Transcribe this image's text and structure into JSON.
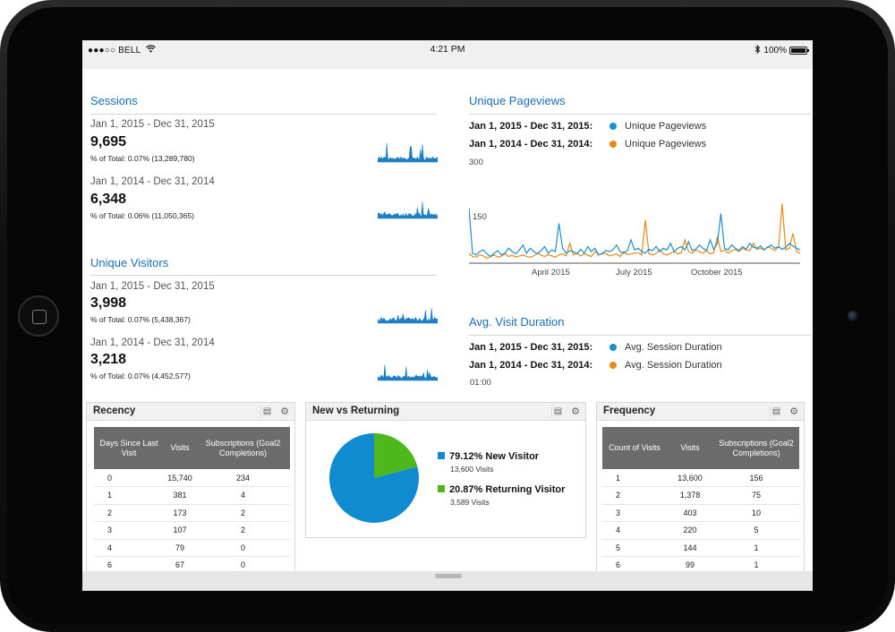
{
  "status_bar": {
    "carrier": "●●●○○ BELL",
    "time": "4:21 PM",
    "battery": "100%",
    "icons": [
      "signal-dots-icon",
      "wifi-icon",
      "bluetooth-icon",
      "battery-icon"
    ]
  },
  "sessions": {
    "title": "Sessions",
    "current": {
      "date": "Jan 1, 2015 - Dec 31, 2015",
      "value": "9,695",
      "total": "% of Total: 0.07% (13,289,780)"
    },
    "previous": {
      "date": "Jan 1, 2014 - Dec 31, 2014",
      "value": "6,348",
      "total": "% of Total: 0.06% (11,050,365)"
    }
  },
  "unique_visitors": {
    "title": "Unique Visitors",
    "current": {
      "date": "Jan 1, 2015 - Dec 31, 2015",
      "value": "3,998",
      "total": "% of Total: 0.07% (5,438,367)"
    },
    "previous": {
      "date": "Jan 1, 2014 - Dec 31, 2014",
      "value": "3,218",
      "total": "% of Total: 0.07% (4,452,577)"
    }
  },
  "unique_pageviews": {
    "title": "Unique Pageviews",
    "legend": [
      {
        "date": "Jan 1, 2015 - Dec 31, 2015:",
        "name": "Unique Pageviews",
        "color": "#1a8fd0"
      },
      {
        "date": "Jan 1, 2014 - Dec 31, 2014:",
        "name": "Unique Pageviews",
        "color": "#e58a16"
      }
    ]
  },
  "avg_visit_duration": {
    "title": "Avg. Visit Duration",
    "legend": [
      {
        "date": "Jan 1, 2015 - Dec 31, 2015:",
        "name": "Avg. Session Duration",
        "color": "#1a8fd0"
      },
      {
        "date": "Jan 1, 2014 - Dec 31, 2014:",
        "name": "Avg. Session Duration",
        "color": "#e58a16"
      }
    ],
    "y_label": "01:00"
  },
  "chart_data": [
    {
      "type": "line",
      "x_ticks": [
        "April 2015",
        "July 2015",
        "October 2015"
      ],
      "y_ticks": [
        "300",
        "150"
      ],
      "ylim": [
        0,
        300
      ],
      "x_range": [
        "Jan 2015",
        "Dec 2015"
      ],
      "grid": false,
      "series": [
        {
          "color": "#1a8fd0",
          "values": [
            165,
            30,
            25,
            35,
            40,
            28,
            20,
            30,
            38,
            25,
            30,
            45,
            35,
            28,
            40,
            55,
            30,
            45,
            35,
            28,
            38,
            50,
            30,
            40,
            35,
            120,
            45,
            30,
            38,
            35,
            28,
            42,
            30,
            50,
            35,
            45,
            25,
            30,
            38,
            35,
            40,
            55,
            35,
            30,
            38,
            70,
            40,
            45,
            35,
            30,
            42,
            38,
            50,
            35,
            45,
            40,
            60,
            35,
            45,
            50,
            40,
            65,
            38,
            42,
            55,
            45,
            38,
            70,
            42,
            60,
            150,
            45,
            40,
            55,
            45,
            38,
            50,
            42,
            60,
            48,
            45,
            52,
            40,
            48,
            55,
            45,
            50,
            42,
            48,
            60,
            52,
            45,
            40
          ]
        },
        {
          "color": "#e58a16",
          "values": [
            30,
            20,
            18,
            25,
            22,
            15,
            20,
            25,
            18,
            22,
            28,
            20,
            24,
            18,
            22,
            25,
            20,
            18,
            22,
            30,
            25,
            20,
            26,
            22,
            18,
            25,
            28,
            22,
            60,
            25,
            30,
            22,
            28,
            25,
            20,
            35,
            25,
            28,
            30,
            22,
            25,
            28,
            20,
            35,
            26,
            28,
            30,
            32,
            25,
            130,
            28,
            25,
            30,
            40,
            28,
            25,
            30,
            35,
            28,
            32,
            70,
            35,
            30,
            40,
            35,
            30,
            38,
            28,
            32,
            80,
            35,
            40,
            30,
            38,
            42,
            35,
            45,
            40,
            38,
            60,
            42,
            45,
            40,
            50,
            45,
            38,
            48,
            180,
            40,
            45,
            90,
            35,
            30
          ]
        }
      ]
    },
    {
      "type": "pie",
      "slices": [
        {
          "label": "New Visitor",
          "value": 79.12,
          "color": "#0f8bd0"
        },
        {
          "label": "Returning Visitor",
          "value": 20.87,
          "color": "#4cb81b"
        }
      ]
    }
  ],
  "recency": {
    "title": "Recency",
    "headers": [
      "Days Since Last Visit",
      "Visits",
      "Subscriptions (Goal2 Completions)"
    ],
    "rows": [
      [
        "0",
        "15,740",
        "234"
      ],
      [
        "1",
        "381",
        "4"
      ],
      [
        "2",
        "173",
        "2"
      ],
      [
        "3",
        "107",
        "2"
      ],
      [
        "4",
        "79",
        "0"
      ],
      [
        "6",
        "67",
        "0"
      ]
    ]
  },
  "new_vs_returning": {
    "title": "New vs Returning",
    "new": {
      "pct": "79.12%",
      "label": "New Visitor",
      "visits": "13,600 Visits"
    },
    "returning": {
      "pct": "20.87%",
      "label": "Returning Visitor",
      "visits": "3,589 Visits"
    }
  },
  "frequency": {
    "title": "Frequency",
    "headers": [
      "Count of Visits",
      "Visits",
      "Subscriptions (Goal2 Completions)"
    ],
    "rows": [
      [
        "1",
        "13,600",
        "156"
      ],
      [
        "2",
        "1,378",
        "75"
      ],
      [
        "3",
        "403",
        "10"
      ],
      [
        "4",
        "220",
        "5"
      ],
      [
        "5",
        "144",
        "1"
      ],
      [
        "6",
        "99",
        "1"
      ]
    ]
  }
}
